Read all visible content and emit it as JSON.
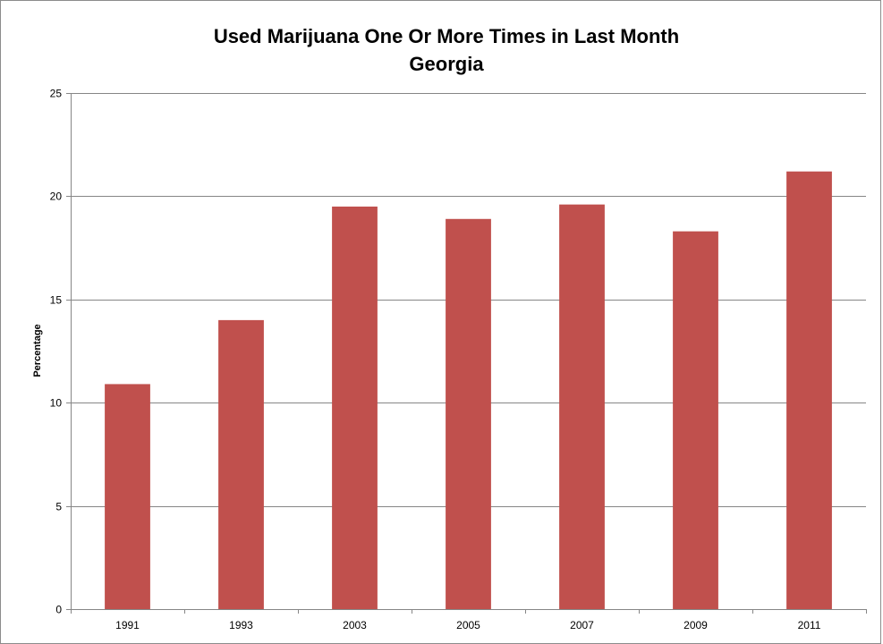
{
  "chart_data": {
    "type": "bar",
    "title": "Used Marijuana One Or More Times in Last Month",
    "subtitle": "Georgia",
    "xlabel": "",
    "ylabel": "Percentage",
    "categories": [
      "1991",
      "1993",
      "2003",
      "2005",
      "2007",
      "2009",
      "2011"
    ],
    "values": [
      10.9,
      14.0,
      19.5,
      18.9,
      19.6,
      18.3,
      21.2
    ],
    "ylim": [
      0,
      25
    ],
    "yticks": [
      0,
      5,
      10,
      15,
      20,
      25
    ],
    "grid": true,
    "legend": "none",
    "bar_color": "#c0504d",
    "grid_color": "#868686"
  }
}
